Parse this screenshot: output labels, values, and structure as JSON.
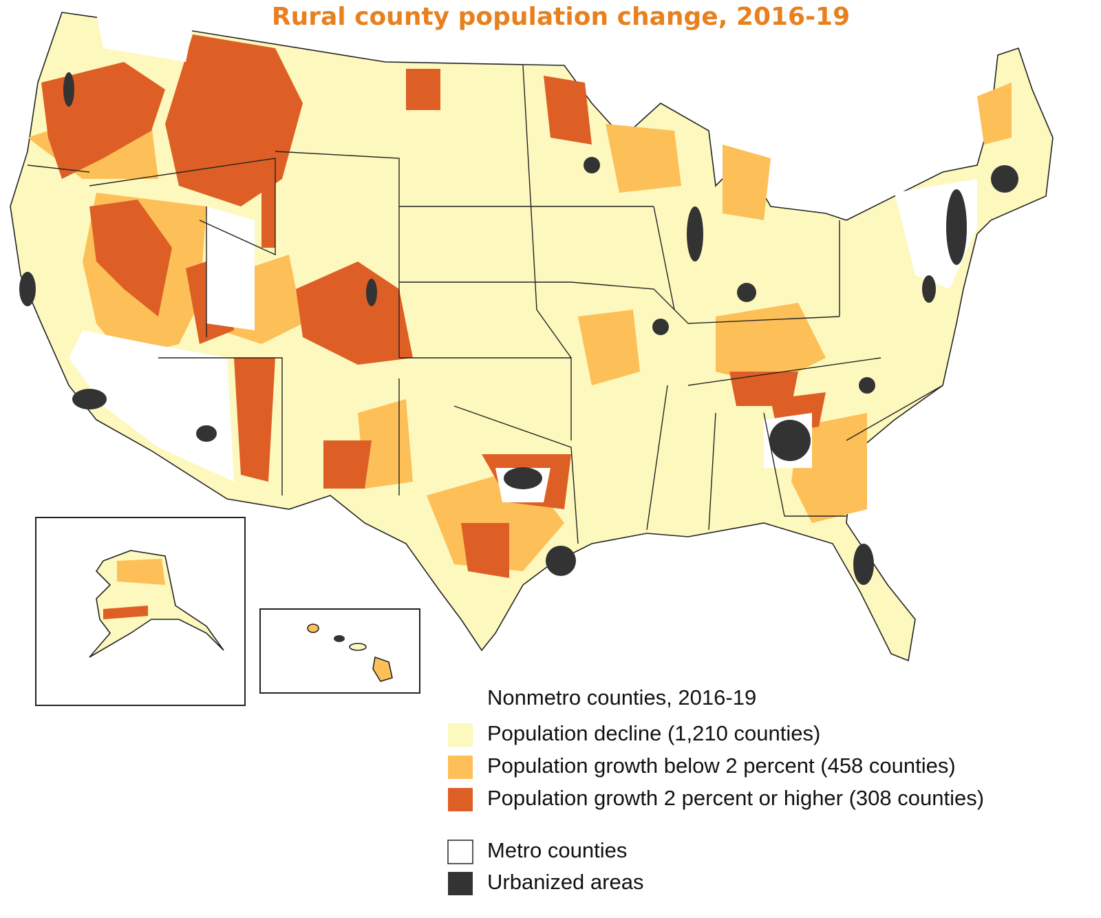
{
  "title": "Rural county population change, 2016-19",
  "title_color": "#e8801e",
  "legend": {
    "title": "Nonmetro counties, 2016-19",
    "items": [
      {
        "label": "Population decline (1,210 counties)",
        "color": "#fdf8bd"
      },
      {
        "label": "Population growth below 2 percent (458 counties)",
        "color": "#fdbf57"
      },
      {
        "label": "Population growth 2 percent or higher (308 counties)",
        "color": "#dd5f26"
      }
    ],
    "other_items": [
      {
        "label": "Metro counties",
        "color": "#ffffff"
      },
      {
        "label": "Urbanized areas",
        "color": "#333333"
      }
    ]
  }
}
